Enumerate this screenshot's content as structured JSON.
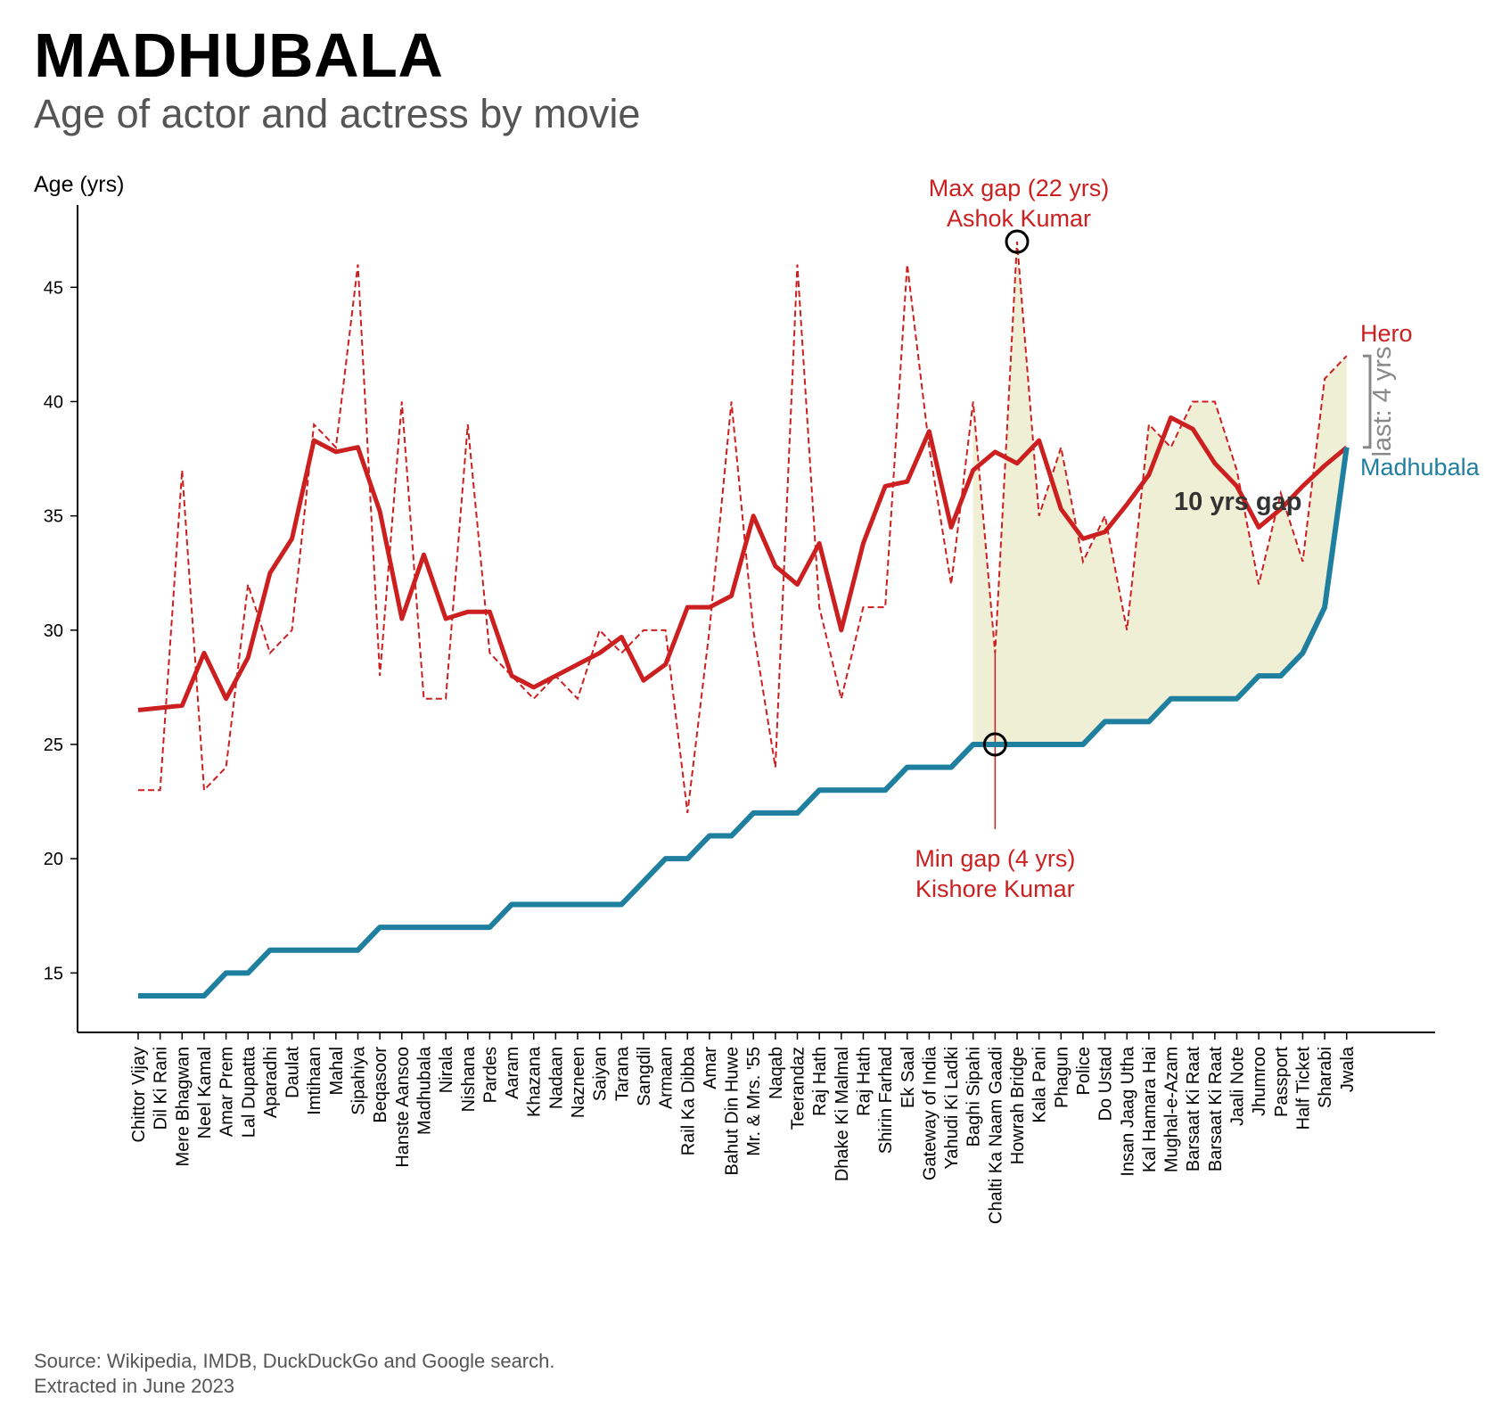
{
  "title": "MADHUBALA",
  "subtitle": "Age of actor and actress by movie",
  "footer": {
    "line1": "Source: Wikipedia, IMDB, DuckDuckGo and Google search.",
    "line2": "Extracted in June 2023"
  },
  "colors": {
    "hero": "#cc1f1f",
    "madhubala": "#1f7f9e",
    "gap_fill": "#efefd6",
    "bracket": "#888888",
    "axis": "#000000"
  },
  "chart_data": {
    "type": "line",
    "ylabel": "Age (yrs)",
    "ylim": [
      12.4,
      48.6
    ],
    "yticks": [
      15,
      20,
      25,
      30,
      35,
      40,
      45
    ],
    "grid": false,
    "categories": [
      "Chittor Vijay",
      "Dil Ki Rani",
      "Mere Bhagwan",
      "Neel Kamal",
      "Amar Prem",
      "Lal Dupatta",
      "Aparadhi",
      "Daulat",
      "Imtihaan",
      "Mahal",
      "Sipahiya",
      "Beqasoor",
      "Hanste Aansoo",
      "Madhubala",
      "Nirala",
      "Nishana",
      "Pardes",
      "Aaram",
      "Khazana",
      "Nadaan",
      "Nazneen",
      "Saiyan",
      "Tarana",
      "Sangdil",
      "Armaan",
      "Rail Ka Dibba",
      "Amar",
      "Bahut Din Huwe",
      "Mr. & Mrs. '55",
      "Naqab",
      "Teerandaz",
      "Raj Hath",
      "Dhake Ki Malmal",
      "Raj Hath",
      "Shirin Farhad",
      "Ek Saal",
      "Gateway of India",
      "Yahudi Ki Ladki",
      "Baghi Sipahi",
      "Chalti Ka Naam Gaadi",
      "Howrah Bridge",
      "Kala Pani",
      "Phagun",
      "Police",
      "Do Ustad",
      "Insan Jaag Utha",
      "Kal Hamara Hai",
      "Mughal-e-Azam",
      "Barsaat Ki Raat",
      "Barsaat Ki Raat",
      "Jaali Note",
      "Jhumroo",
      "Passport",
      "Half Ticket",
      "Sharabi",
      "Jwala"
    ],
    "series": [
      {
        "name": "Hero",
        "style": "dashed",
        "values": [
          23,
          23,
          37,
          23,
          24,
          32,
          29,
          30,
          39,
          38,
          46,
          28,
          40,
          27,
          27,
          39,
          29,
          28,
          27,
          28,
          27,
          30,
          29,
          30,
          30,
          22,
          30,
          40,
          30,
          24,
          46,
          31,
          27,
          31,
          31,
          46,
          38,
          32,
          40,
          29,
          47,
          35,
          38,
          33,
          35,
          30,
          39,
          38,
          40,
          40,
          37,
          32,
          36,
          33,
          41,
          42
        ]
      },
      {
        "name": "Hero",
        "style": "solid",
        "values": [
          26.5,
          26.6,
          26.7,
          29,
          27,
          28.8,
          32.5,
          34,
          38.3,
          37.8,
          38,
          35.2,
          30.5,
          33.3,
          30.5,
          30.8,
          30.8,
          28,
          27.5,
          28,
          28.5,
          29,
          29.7,
          27.8,
          28.5,
          31,
          31,
          31.5,
          35,
          32.8,
          32,
          33.8,
          30,
          33.8,
          36.3,
          36.5,
          38.7,
          34.5,
          37,
          37.8,
          37.3,
          38.3,
          35.3,
          34,
          34.3,
          35.5,
          36.8,
          39.3,
          38.8,
          37.3,
          36.3,
          34.5,
          35.3,
          36.3,
          37.2,
          38
        ]
      },
      {
        "name": "Madhubala",
        "style": "solid",
        "values": [
          14,
          14,
          14,
          14,
          15,
          15,
          16,
          16,
          16,
          16,
          16,
          17,
          17,
          17,
          17,
          17,
          17,
          18,
          18,
          18,
          18,
          18,
          18,
          19,
          20,
          20,
          21,
          21,
          22,
          22,
          22,
          23,
          23,
          23,
          23,
          24,
          24,
          24,
          25,
          25,
          25,
          25,
          25,
          25,
          26,
          26,
          26,
          27,
          27,
          27,
          27,
          28,
          28,
          29,
          31,
          38
        ]
      }
    ],
    "shaded_gap_range": [
      "Baghi Sipahi",
      "Jwala"
    ],
    "annotations": {
      "max_gap_line1": "Max gap (22 yrs)",
      "max_gap_line2": "Ashok Kumar",
      "min_gap_line1": "Min gap (4 yrs)",
      "min_gap_line2": "Kishore Kumar",
      "avg_gap": "10 yrs gap",
      "last_gap": "last: 4 yrs",
      "hero_label": "Hero",
      "madhubala_label": "Madhubala"
    }
  }
}
